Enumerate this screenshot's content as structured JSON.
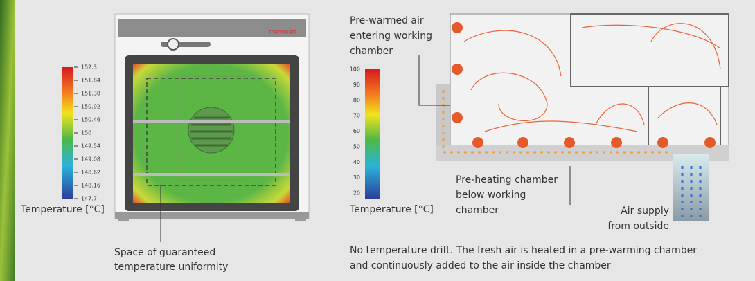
{
  "left_figure": {
    "brand": "memmert",
    "scale_labels": [
      "152.3",
      "151.84",
      "151.38",
      "150.92",
      "150.46",
      "150",
      "149.54",
      "149.08",
      "148.62",
      "148.16",
      "147.7"
    ],
    "scale_title": "Temperature [°C]",
    "annotation": [
      "Space of guaranteed",
      "temperature uniformity"
    ]
  },
  "right_figure": {
    "scale_labels": [
      "100",
      "90",
      "80",
      "70",
      "60",
      "50",
      "40",
      "30",
      "20"
    ],
    "scale_title": "Temperature [°C]",
    "labels": {
      "prewarmed": [
        "Pre-warmed air",
        "entering working",
        "chamber"
      ],
      "preheating": [
        "Pre-heating chamber",
        "below working",
        "chamber"
      ],
      "air_supply": [
        "Air supply",
        "from outside"
      ]
    },
    "caption": [
      "No temperature drift. The fresh air is heated in a pre-warming chamber",
      "and continuously added to the air inside the chamber"
    ]
  }
}
